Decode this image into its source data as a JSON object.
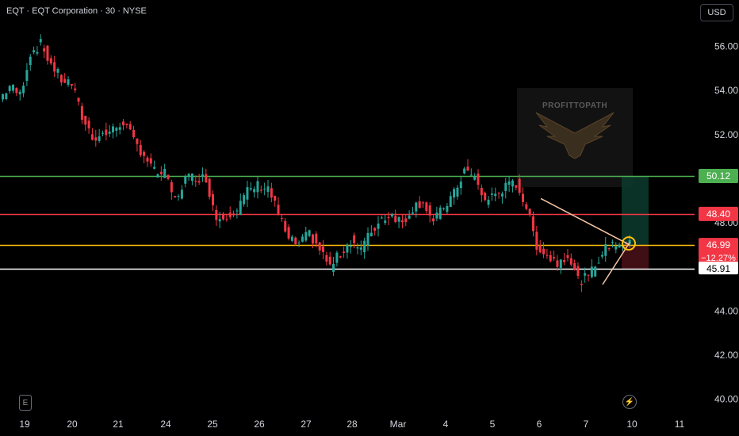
{
  "header": {
    "symbol_title": "EQT · EQT Corporation · 30 · NYSE",
    "currency_button": "USD"
  },
  "icons": {
    "earnings": "E",
    "lightning": "⚡"
  },
  "watermark": {
    "text": "PROFITTOPATH",
    "icon": "eagle-logo"
  },
  "colors": {
    "background": "#000000",
    "up": "#26a69a",
    "down": "#f23645",
    "green_line": "#4caf50",
    "red_line": "#f23645",
    "yellow_line": "#ffc107",
    "white_line": "#ffffff",
    "trendline": "#f5c6a5",
    "axis_text": "#d1d4dc"
  },
  "chart_data": {
    "type": "candlestick",
    "title": "EQT · EQT Corporation · 30 · NYSE",
    "x_tick_labels": [
      "19",
      "20",
      "21",
      "24",
      "25",
      "26",
      "27",
      "28",
      "Mar",
      "4",
      "5",
      "6",
      "7",
      "10",
      "11"
    ],
    "y_tick_labels": [
      "56.00",
      "54.00",
      "52.00",
      "50.00",
      "48.00",
      "46.00",
      "44.00",
      "42.00",
      "40.00"
    ],
    "ylim": [
      39.5,
      57.5
    ],
    "grid": false,
    "close_path": [
      53.6,
      54.2,
      53.8,
      55.7,
      56.1,
      55.2,
      54.5,
      54.3,
      52.8,
      51.9,
      52.0,
      52.2,
      52.6,
      51.7,
      51.1,
      50.3,
      50.2,
      49.0,
      50.0,
      50.1,
      50.0,
      48.2,
      48.4,
      48.6,
      49.4,
      49.7,
      49.6,
      48.4,
      47.2,
      47.0,
      47.5,
      46.8,
      46.0,
      46.6,
      47.2,
      46.8,
      47.6,
      48.2,
      48.4,
      48.0,
      48.7,
      49.0,
      48.0,
      48.7,
      49.3,
      50.4,
      50.0,
      49.0,
      49.3,
      49.6,
      49.8,
      48.7,
      47.0,
      46.5,
      46.2,
      46.6,
      45.4,
      45.5,
      46.4,
      47.0,
      47.1,
      46.99
    ],
    "horizontal_lines": [
      {
        "name": "50.12",
        "value": 50.12,
        "label": "50.12",
        "color": "#4caf50"
      },
      {
        "name": "48.40",
        "value": 48.4,
        "label": "48.40",
        "color": "#f23645"
      },
      {
        "name": "46.99",
        "value": 46.99,
        "label": "46.99",
        "color": "#ffc107"
      },
      {
        "name": "45.91",
        "value": 45.91,
        "label": "45.91",
        "color": "#ffffff"
      }
    ],
    "current_price": {
      "value": 46.99,
      "label": "46.99",
      "change": "−12.27%"
    },
    "position_box": {
      "target": 50.12,
      "entry": 46.99,
      "stop": 45.91
    },
    "triangle": {
      "upper": [
        [
          49.1,
          0
        ],
        [
          47.0,
          1
        ]
      ],
      "lower": [
        [
          45.2,
          0
        ],
        [
          47.1,
          1
        ]
      ]
    }
  }
}
